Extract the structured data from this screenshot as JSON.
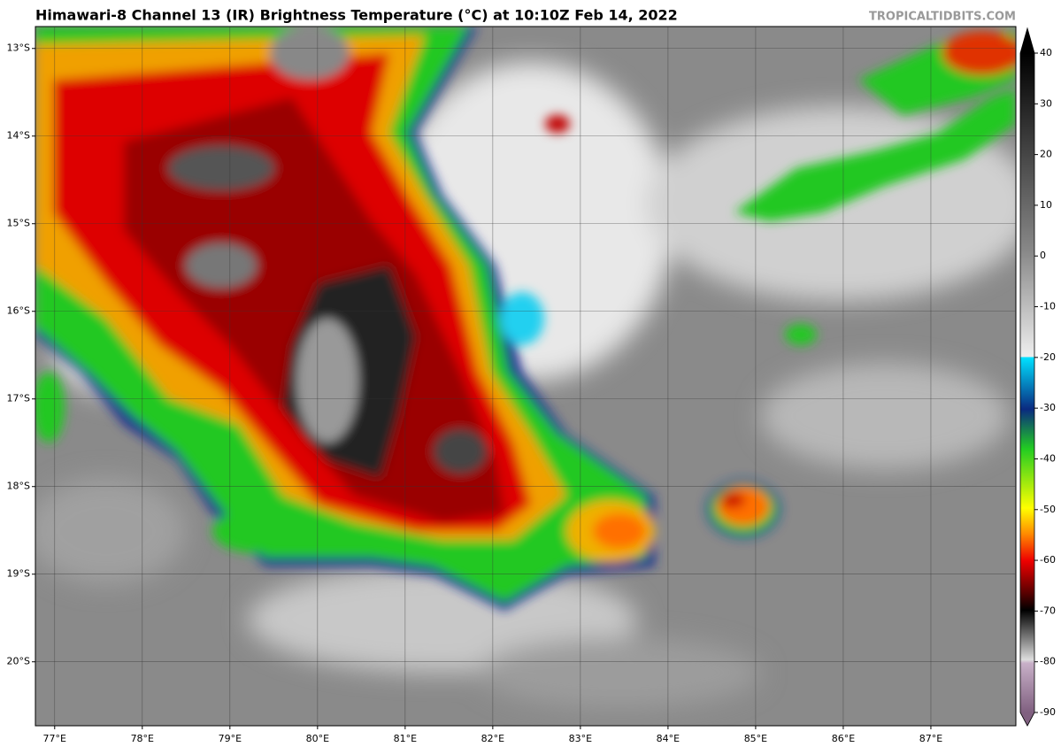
{
  "map": {
    "title": "Himawari-8 Channel 13 (IR) Brightness Temperature (°C) at 10:10Z Feb 14, 2022",
    "credit": "TROPICALTIDBITS.COM",
    "xlim": [
      76.78,
      87.97
    ],
    "ylim": [
      12.75,
      20.73
    ],
    "lat_ticks": [
      {
        "value": 13,
        "label": "13°S"
      },
      {
        "value": 14,
        "label": "14°S"
      },
      {
        "value": 15,
        "label": "15°S"
      },
      {
        "value": 16,
        "label": "16°S"
      },
      {
        "value": 17,
        "label": "17°S"
      },
      {
        "value": 18,
        "label": "18°S"
      },
      {
        "value": 19,
        "label": "19°S"
      },
      {
        "value": 20,
        "label": "20°S"
      }
    ],
    "lon_ticks": [
      {
        "value": 77,
        "label": "77°E"
      },
      {
        "value": 78,
        "label": "78°E"
      },
      {
        "value": 79,
        "label": "79°E"
      },
      {
        "value": 80,
        "label": "80°E"
      },
      {
        "value": 81,
        "label": "81°E"
      },
      {
        "value": 82,
        "label": "82°E"
      },
      {
        "value": 83,
        "label": "83°E"
      },
      {
        "value": 84,
        "label": "84°E"
      },
      {
        "value": 85,
        "label": "85°E"
      },
      {
        "value": 86,
        "label": "86°E"
      },
      {
        "value": 87,
        "label": "87°E"
      }
    ],
    "colorbar": {
      "range": [
        -90,
        40
      ],
      "ticks": [
        40,
        30,
        20,
        10,
        0,
        -10,
        -20,
        -30,
        -40,
        -50,
        -60,
        -70,
        -80,
        -90
      ]
    }
  }
}
